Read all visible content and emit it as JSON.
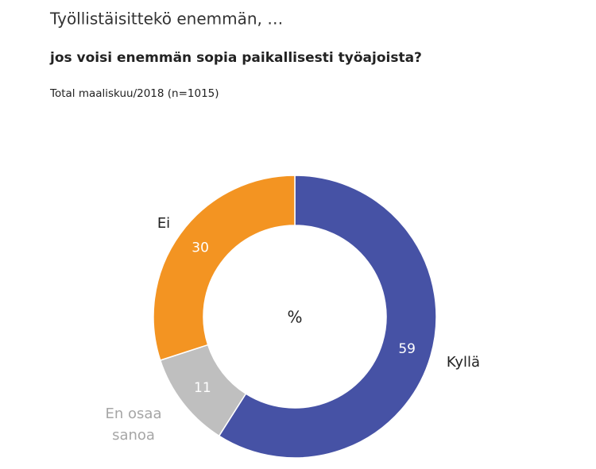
{
  "chart_data": {
    "type": "donut",
    "title": "Työllistäisittekö enemmän, …",
    "subtitle": "jos voisi enemmän sopia paikallisesti työajoista?",
    "note": "Total maaliskuu/2018  (n=1015)",
    "center_label": "%",
    "categories": [
      "Kyllä",
      "En osaa sanoa",
      "Ei"
    ],
    "values": [
      59,
      11,
      30
    ],
    "colors": [
      "#4652a5",
      "#bfbfbf",
      "#f39422"
    ]
  }
}
